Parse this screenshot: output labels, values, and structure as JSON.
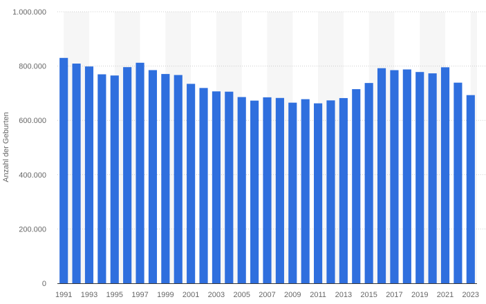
{
  "chart_data": {
    "type": "bar",
    "ylabel": "Anzahl der Geburten",
    "ylim": [
      0,
      1000000
    ],
    "y_ticks": [
      0,
      200000,
      400000,
      600000,
      800000,
      1000000
    ],
    "y_tick_labels": [
      "0",
      "200.000",
      "400.000",
      "600.000",
      "800.000",
      "1.000.000"
    ],
    "categories": [
      "1991",
      "1992",
      "1993",
      "1994",
      "1995",
      "1996",
      "1997",
      "1998",
      "1999",
      "2000",
      "2001",
      "2002",
      "2003",
      "2004",
      "2005",
      "2006",
      "2007",
      "2008",
      "2009",
      "2010",
      "2011",
      "2012",
      "2013",
      "2014",
      "2015",
      "2016",
      "2017",
      "2018",
      "2019",
      "2020",
      "2021",
      "2022",
      "2023"
    ],
    "x_tick_labels": [
      "1991",
      "",
      "1993",
      "",
      "1995",
      "",
      "1997",
      "",
      "1999",
      "",
      "2001",
      "",
      "2003",
      "",
      "2005",
      "",
      "2007",
      "",
      "2009",
      "",
      "2011",
      "",
      "2013",
      "",
      "2015",
      "",
      "2017",
      "",
      "2019",
      "",
      "2021",
      "",
      "2023"
    ],
    "values": [
      830019,
      809114,
      798447,
      769603,
      765221,
      796013,
      812173,
      785034,
      770744,
      766999,
      734475,
      719250,
      706721,
      705622,
      685795,
      672724,
      684862,
      682514,
      665126,
      677947,
      662685,
      673544,
      682069,
      714927,
      737575,
      792141,
      784901,
      787523,
      778090,
      773144,
      795492,
      738819,
      692989
    ],
    "grid": true,
    "alternating_column_bands": true,
    "colors": {
      "bar": "#2f6fde",
      "band": "#f6f6f6",
      "grid": "#cccccc",
      "axis": "#333333",
      "text": "#666666"
    }
  }
}
